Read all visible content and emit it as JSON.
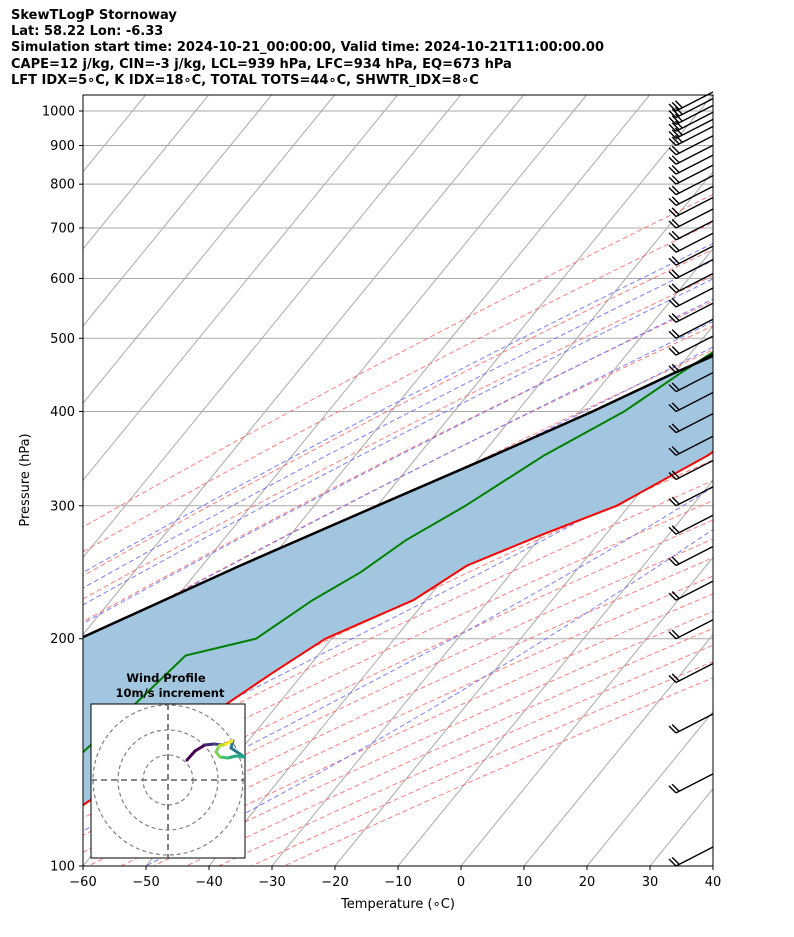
{
  "header": {
    "line1": "SkewTLogP Stornoway",
    "line2": "Lat: 58.22   Lon: -6.33",
    "line3": "Simulation start time: 2024-10-21_00:00:00, Valid time: 2024-10-21T11:00:00.00",
    "line4": "CAPE=12 j/kg, CIN=-3 j/kg, LCL=939 hPa, LFC=934 hPa, EQ=673 hPa",
    "line5": "LFT IDX=5∘C, K IDX=18∘C, TOTAL TOTS=44∘C, SHWTR_IDX=8∘C"
  },
  "chart_data": {
    "type": "line",
    "subtype": "skew-t log-p",
    "xlabel": "Temperature (∘C)",
    "ylabel": "Pressure (hPa)",
    "xlim": [
      -60,
      40
    ],
    "ylim": [
      1050,
      100
    ],
    "y_scale": "log",
    "x_ticks": [
      "−60",
      "−50",
      "−40",
      "−30",
      "−20",
      "−10",
      "0",
      "10",
      "20",
      "30",
      "40"
    ],
    "y_ticks": [
      "1000",
      "900",
      "800",
      "700",
      "600",
      "500",
      "400",
      "300",
      "200",
      "100"
    ],
    "grid": true,
    "colors": {
      "temperature": "#ff0000",
      "dewpoint": "#008000",
      "parcel": "#000000",
      "cape_fill": "#a2c6df",
      "dry_adiabats": "#ff6666",
      "moist_adiabats": "#6666ff",
      "mixing_ratio": "#9b59c6",
      "isotherms": "#aaaaaa"
    },
    "series": [
      {
        "points": [
          [
            12,
            1000
          ],
          [
            11.5,
            980
          ],
          [
            11,
            960
          ],
          [
            10.8,
            940
          ],
          [
            10,
            900
          ],
          [
            9,
            850
          ],
          [
            7.5,
            800
          ],
          [
            6,
            750
          ],
          [
            4.5,
            700
          ],
          [
            3.5,
            650
          ],
          [
            1.5,
            600
          ],
          [
            0,
            550
          ],
          [
            -3,
            500
          ],
          [
            -6,
            450
          ],
          [
            -10,
            400
          ],
          [
            -14,
            350
          ],
          [
            -22,
            300
          ],
          [
            -30,
            275
          ],
          [
            -38,
            250
          ],
          [
            -42,
            225
          ],
          [
            -51,
            200
          ],
          [
            -55,
            180
          ],
          [
            -58,
            165
          ],
          [
            -61,
            150
          ],
          [
            -64,
            135
          ],
          [
            -68,
            120
          ],
          [
            -71,
            110
          ],
          [
            -73,
            100
          ]
        ]
      },
      {
        "points": [
          [
            8.5,
            1000
          ],
          [
            8.3,
            980
          ],
          [
            8,
            950
          ],
          [
            2,
            900
          ],
          [
            -3,
            850
          ],
          [
            -6,
            800
          ],
          [
            -9,
            750
          ],
          [
            -12,
            700
          ],
          [
            -17,
            650
          ],
          [
            -20,
            600
          ],
          [
            -22,
            550
          ],
          [
            -25,
            500
          ],
          [
            -29,
            450
          ],
          [
            -33,
            400
          ],
          [
            -40,
            350
          ],
          [
            -46,
            300
          ],
          [
            -51,
            270
          ],
          [
            -54,
            245
          ],
          [
            -58,
            225
          ],
          [
            -62,
            200
          ],
          [
            -71,
            190
          ],
          [
            -73,
            160
          ],
          [
            -76,
            130
          ],
          [
            -79,
            110
          ],
          [
            -81,
            100
          ]
        ]
      },
      {
        "points": [
          [
            12,
            1000
          ],
          [
            9.5,
            960
          ],
          [
            9,
            939
          ],
          [
            7.5,
            900
          ],
          [
            5.5,
            850
          ],
          [
            3,
            800
          ],
          [
            0.5,
            750
          ],
          [
            -2.5,
            700
          ],
          [
            -5.5,
            673
          ],
          [
            -10,
            600
          ],
          [
            -16,
            550
          ],
          [
            -22,
            500
          ],
          [
            -30,
            450
          ],
          [
            -38,
            400
          ],
          [
            -48,
            350
          ],
          [
            -60,
            300
          ],
          [
            -74,
            250
          ],
          [
            -90,
            200
          ],
          [
            -103,
            160
          ],
          [
            -112,
            130
          ],
          [
            -125,
            100
          ]
        ]
      }
    ],
    "hodograph": {
      "title": "Wind Profile",
      "subtitle": "10m/s increment"
    },
    "wind_barbs": "37 barbs from ~1000 to 100 hPa, westerly to northwesterly"
  }
}
